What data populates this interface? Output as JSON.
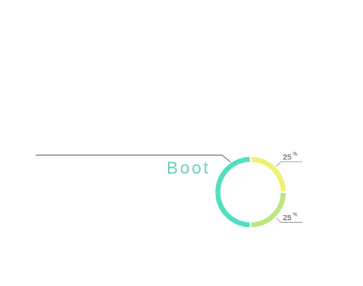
{
  "chart_data": {
    "type": "pie",
    "variant": "donut",
    "title": "Boot",
    "slices": [
      {
        "value": 25,
        "color": "#EFF06E",
        "label": "25",
        "unit": "%"
      },
      {
        "value": 25,
        "color": "#BCE57F",
        "label": "25",
        "unit": "%"
      },
      {
        "value": 50,
        "color": "#4EE0C0"
      }
    ],
    "title_color": "#6CCFB8",
    "leader_color": "#8C8C8C",
    "legend": "none"
  }
}
